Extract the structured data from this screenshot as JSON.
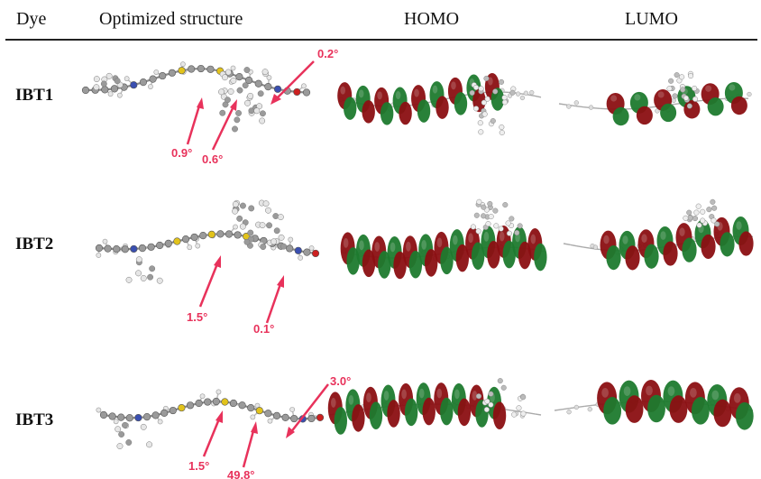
{
  "header": {
    "dye": "Dye",
    "optimized": "Optimized structure",
    "homo": "HOMO",
    "lumo": "LUMO"
  },
  "rows": [
    {
      "name": "IBT1",
      "angles": [
        "0.2°",
        "0.9°",
        "0.6°"
      ]
    },
    {
      "name": "IBT2",
      "angles": [
        "1.5°",
        "0.1°"
      ]
    },
    {
      "name": "IBT3",
      "angles": [
        "3.0°",
        "1.5°",
        "49.8°"
      ]
    }
  ],
  "colors": {
    "annotation": "#e8325b",
    "orbital_positive": "#8b0f12",
    "orbital_negative": "#1e7a2e",
    "carbon": "#9a9a9a",
    "hydrogen": "#e6e6e6",
    "sulfur": "#e2c31b",
    "nitrogen": "#3a4fb0",
    "oxygen": "#cc2020"
  }
}
